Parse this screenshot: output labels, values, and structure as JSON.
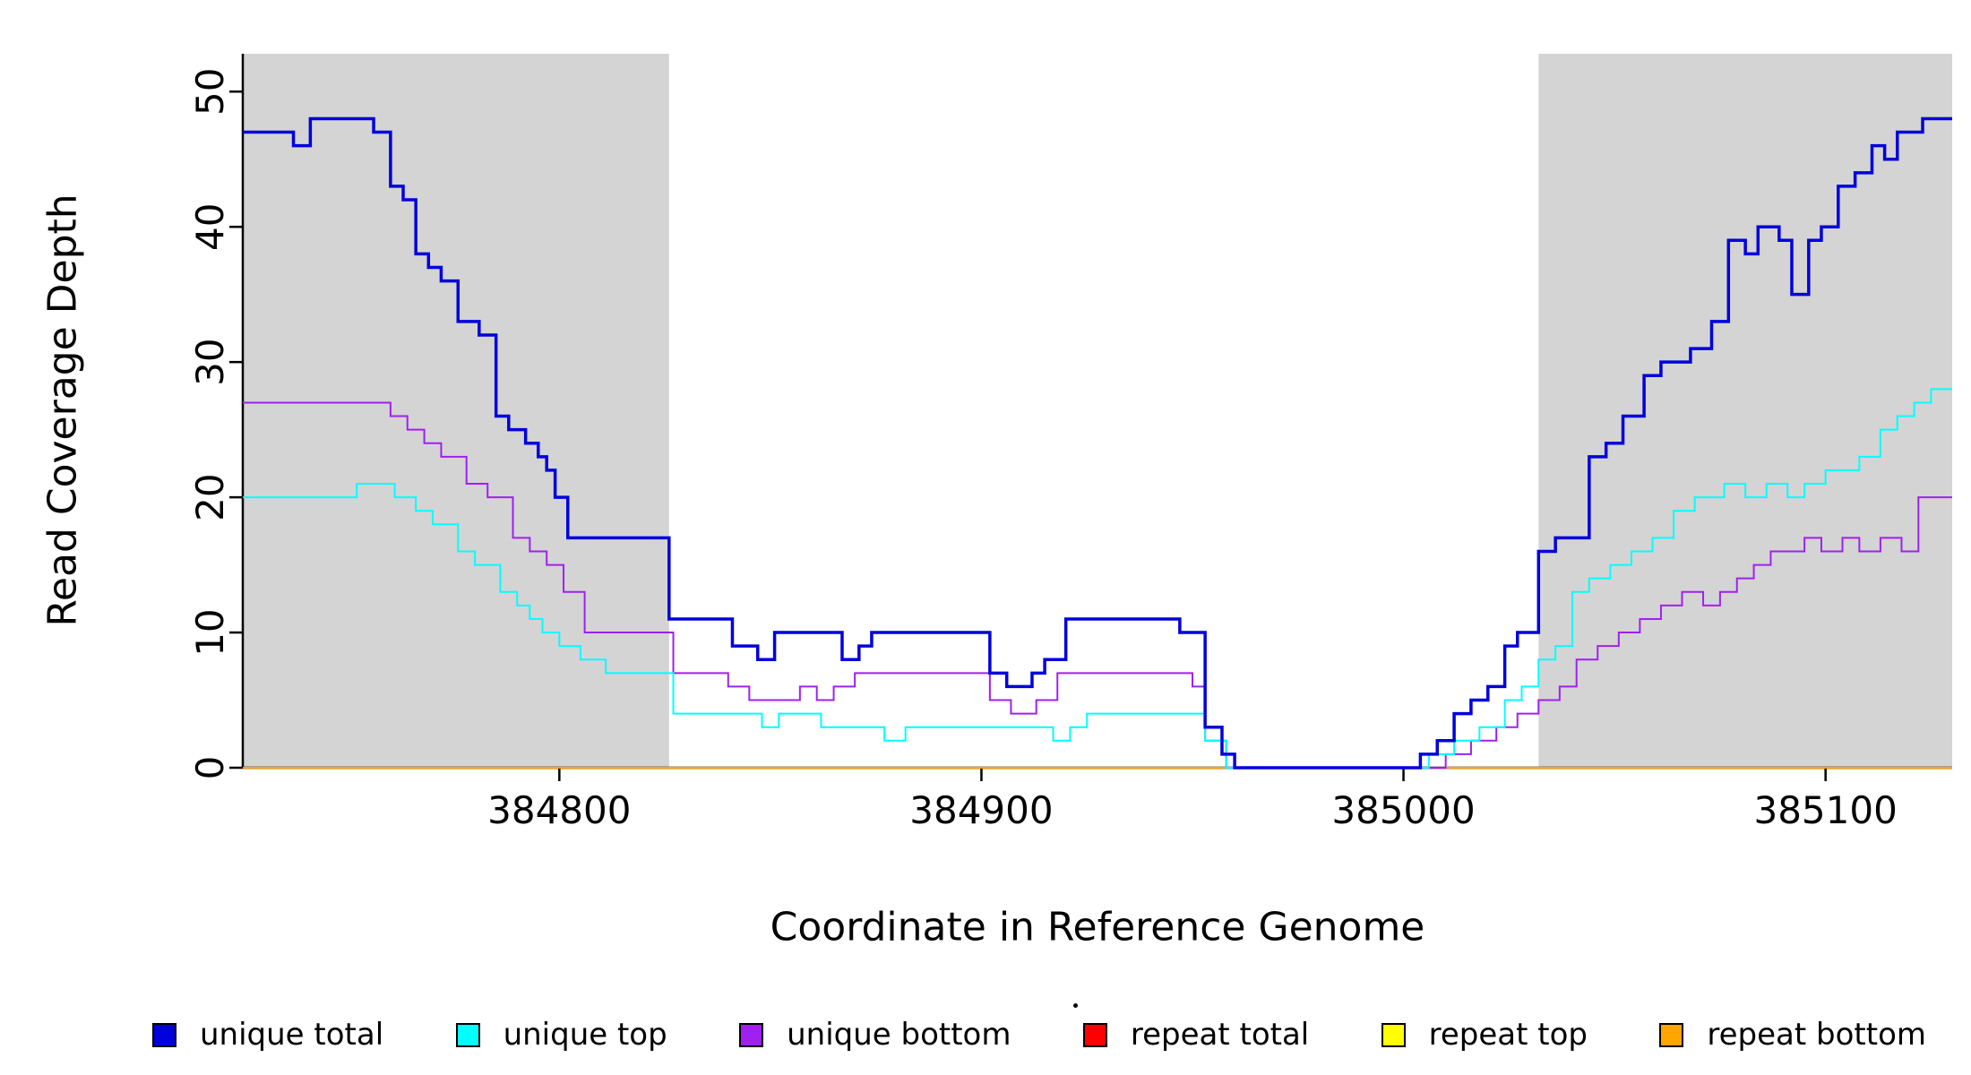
{
  "figure": {
    "background": "#ffffff",
    "axis_color": "#000000",
    "shade_color": "#d4d4d4"
  },
  "chart_data": {
    "type": "line",
    "subtype": "step",
    "title": "",
    "xlabel": "Coordinate in Reference Genome",
    "ylabel": "Read Coverage Depth",
    "xlim": [
      384725,
      385130
    ],
    "ylim": [
      0,
      52.8
    ],
    "xticks": [
      384800,
      384900,
      385000,
      385100
    ],
    "yticks": [
      0,
      10,
      20,
      30,
      40,
      50
    ],
    "grid": false,
    "legend_position": "bottom",
    "shaded_regions": [
      {
        "x0": 384725,
        "x1": 384826,
        "color": "#d4d4d4"
      },
      {
        "x0": 385032,
        "x1": 385130,
        "color": "#d4d4d4"
      }
    ],
    "series": [
      {
        "name": "repeat total",
        "color": "#ff0000",
        "width": 2,
        "steps": [
          [
            384725,
            0
          ]
        ]
      },
      {
        "name": "repeat top",
        "color": "#ffff00",
        "width": 2,
        "steps": [
          [
            384725,
            0
          ]
        ]
      },
      {
        "name": "repeat bottom",
        "color": "#ffa500",
        "width": 2,
        "steps": [
          [
            384725,
            0
          ]
        ]
      },
      {
        "name": "unique bottom",
        "color": "#a020f0",
        "width": 2,
        "steps": [
          [
            384725,
            27
          ],
          [
            384760,
            26
          ],
          [
            384764,
            25
          ],
          [
            384768,
            24
          ],
          [
            384772,
            23
          ],
          [
            384778,
            21
          ],
          [
            384783,
            20
          ],
          [
            384789,
            17
          ],
          [
            384793,
            16
          ],
          [
            384797,
            15
          ],
          [
            384801,
            13
          ],
          [
            384806,
            10
          ],
          [
            384827,
            7
          ],
          [
            384840,
            6
          ],
          [
            384845,
            5
          ],
          [
            384857,
            6
          ],
          [
            384861,
            5
          ],
          [
            384865,
            6
          ],
          [
            384870,
            7
          ],
          [
            384902,
            5
          ],
          [
            384907,
            4
          ],
          [
            384913,
            5
          ],
          [
            384918,
            7
          ],
          [
            384950,
            6
          ],
          [
            384953,
            2
          ],
          [
            384958,
            0
          ],
          [
            385010,
            1
          ],
          [
            385016,
            2
          ],
          [
            385022,
            3
          ],
          [
            385027,
            4
          ],
          [
            385032,
            5
          ],
          [
            385037,
            6
          ],
          [
            385041,
            8
          ],
          [
            385046,
            9
          ],
          [
            385051,
            10
          ],
          [
            385056,
            11
          ],
          [
            385061,
            12
          ],
          [
            385066,
            13
          ],
          [
            385071,
            12
          ],
          [
            385075,
            13
          ],
          [
            385079,
            14
          ],
          [
            385083,
            15
          ],
          [
            385087,
            16
          ],
          [
            385095,
            17
          ],
          [
            385099,
            16
          ],
          [
            385104,
            17
          ],
          [
            385108,
            16
          ],
          [
            385113,
            17
          ],
          [
            385118,
            16
          ],
          [
            385122,
            20
          ]
        ]
      },
      {
        "name": "unique top",
        "color": "#00ffff",
        "width": 2,
        "steps": [
          [
            384725,
            20
          ],
          [
            384752,
            21
          ],
          [
            384761,
            20
          ],
          [
            384766,
            19
          ],
          [
            384770,
            18
          ],
          [
            384776,
            16
          ],
          [
            384780,
            15
          ],
          [
            384786,
            13
          ],
          [
            384790,
            12
          ],
          [
            384793,
            11
          ],
          [
            384796,
            10
          ],
          [
            384800,
            9
          ],
          [
            384805,
            8
          ],
          [
            384811,
            7
          ],
          [
            384827,
            4
          ],
          [
            384848,
            3
          ],
          [
            384852,
            4
          ],
          [
            384862,
            3
          ],
          [
            384877,
            2
          ],
          [
            384882,
            3
          ],
          [
            384917,
            2
          ],
          [
            384921,
            3
          ],
          [
            384925,
            4
          ],
          [
            384953,
            2
          ],
          [
            384958,
            0
          ],
          [
            385006,
            1
          ],
          [
            385012,
            2
          ],
          [
            385018,
            3
          ],
          [
            385024,
            5
          ],
          [
            385028,
            6
          ],
          [
            385032,
            8
          ],
          [
            385036,
            9
          ],
          [
            385040,
            13
          ],
          [
            385044,
            14
          ],
          [
            385049,
            15
          ],
          [
            385054,
            16
          ],
          [
            385059,
            17
          ],
          [
            385064,
            19
          ],
          [
            385069,
            20
          ],
          [
            385076,
            21
          ],
          [
            385081,
            20
          ],
          [
            385086,
            21
          ],
          [
            385091,
            20
          ],
          [
            385095,
            21
          ],
          [
            385100,
            22
          ],
          [
            385108,
            23
          ],
          [
            385113,
            25
          ],
          [
            385117,
            26
          ],
          [
            385121,
            27
          ],
          [
            385125,
            28
          ]
        ]
      },
      {
        "name": "unique total",
        "color": "#0000dd",
        "width": 3.5,
        "steps": [
          [
            384725,
            47
          ],
          [
            384737,
            46
          ],
          [
            384741,
            48
          ],
          [
            384756,
            47
          ],
          [
            384760,
            43
          ],
          [
            384763,
            42
          ],
          [
            384766,
            38
          ],
          [
            384769,
            37
          ],
          [
            384772,
            36
          ],
          [
            384776,
            33
          ],
          [
            384781,
            32
          ],
          [
            384785,
            26
          ],
          [
            384788,
            25
          ],
          [
            384792,
            24
          ],
          [
            384795,
            23
          ],
          [
            384797,
            22
          ],
          [
            384799,
            20
          ],
          [
            384802,
            17
          ],
          [
            384826,
            11
          ],
          [
            384841,
            9
          ],
          [
            384847,
            8
          ],
          [
            384851,
            10
          ],
          [
            384867,
            8
          ],
          [
            384871,
            9
          ],
          [
            384874,
            10
          ],
          [
            384902,
            7
          ],
          [
            384906,
            6
          ],
          [
            384912,
            7
          ],
          [
            384915,
            8
          ],
          [
            384920,
            11
          ],
          [
            384947,
            10
          ],
          [
            384953,
            3
          ],
          [
            384957,
            1
          ],
          [
            384960,
            0
          ],
          [
            385004,
            1
          ],
          [
            385008,
            2
          ],
          [
            385012,
            4
          ],
          [
            385016,
            5
          ],
          [
            385020,
            6
          ],
          [
            385024,
            9
          ],
          [
            385027,
            10
          ],
          [
            385032,
            16
          ],
          [
            385036,
            17
          ],
          [
            385044,
            23
          ],
          [
            385048,
            24
          ],
          [
            385052,
            26
          ],
          [
            385057,
            29
          ],
          [
            385061,
            30
          ],
          [
            385068,
            31
          ],
          [
            385073,
            33
          ],
          [
            385077,
            39
          ],
          [
            385081,
            38
          ],
          [
            385084,
            40
          ],
          [
            385089,
            39
          ],
          [
            385092,
            35
          ],
          [
            385096,
            39
          ],
          [
            385099,
            40
          ],
          [
            385103,
            43
          ],
          [
            385107,
            44
          ],
          [
            385111,
            46
          ],
          [
            385114,
            45
          ],
          [
            385117,
            47
          ],
          [
            385123,
            48
          ]
        ]
      }
    ],
    "legend": {
      "items": [
        {
          "label": "unique total",
          "color": "#0000dd"
        },
        {
          "label": "unique top",
          "color": "#00ffff"
        },
        {
          "label": "unique bottom",
          "color": "#a020f0"
        },
        {
          "label": "repeat total",
          "color": "#ff0000"
        },
        {
          "label": "repeat top",
          "color": "#ffff00"
        },
        {
          "label": "repeat bottom",
          "color": "#ffa500"
        }
      ]
    }
  }
}
